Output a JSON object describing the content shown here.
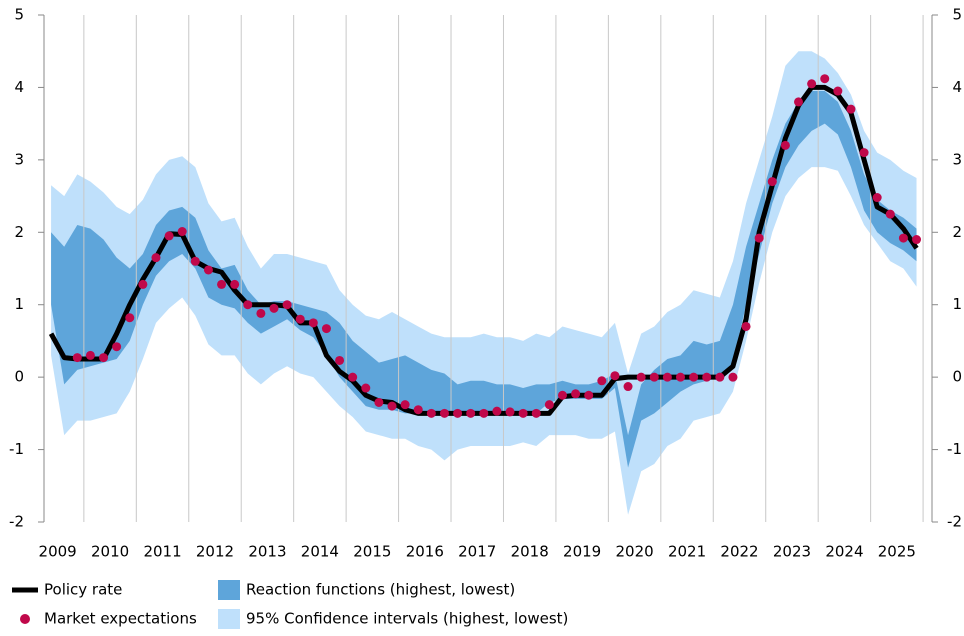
{
  "chart_data": {
    "type": "line",
    "x": [
      2009.375,
      2009.625,
      2009.875,
      2010.125,
      2010.375,
      2010.625,
      2010.875,
      2011.125,
      2011.375,
      2011.625,
      2011.875,
      2012.125,
      2012.375,
      2012.625,
      2012.875,
      2013.125,
      2013.375,
      2013.625,
      2013.875,
      2014.125,
      2014.375,
      2014.625,
      2014.875,
      2015.125,
      2015.375,
      2015.625,
      2015.875,
      2016.125,
      2016.375,
      2016.625,
      2016.875,
      2017.125,
      2017.375,
      2017.625,
      2017.875,
      2018.125,
      2018.375,
      2018.625,
      2018.875,
      2019.125,
      2019.375,
      2019.625,
      2019.875,
      2020.125,
      2020.375,
      2020.625,
      2020.875,
      2021.125,
      2021.375,
      2021.625,
      2021.875,
      2022.125,
      2022.375,
      2022.625,
      2022.875,
      2023.125,
      2023.375,
      2023.625,
      2023.875,
      2024.125,
      2024.375,
      2024.625,
      2024.875,
      2025.125,
      2025.375,
      2025.625,
      2025.875
    ],
    "xlim": [
      2009.24,
      2026.17
    ],
    "xticks": [
      {
        "value": 2009.5,
        "label": "2009"
      },
      {
        "value": 2010.5,
        "label": "2010"
      },
      {
        "value": 2011.5,
        "label": "2011"
      },
      {
        "value": 2012.5,
        "label": "2012"
      },
      {
        "value": 2013.5,
        "label": "2013"
      },
      {
        "value": 2014.5,
        "label": "2014"
      },
      {
        "value": 2015.5,
        "label": "2015"
      },
      {
        "value": 2016.5,
        "label": "2016"
      },
      {
        "value": 2017.5,
        "label": "2017"
      },
      {
        "value": 2018.5,
        "label": "2018"
      },
      {
        "value": 2019.5,
        "label": "2019"
      },
      {
        "value": 2020.5,
        "label": "2020"
      },
      {
        "value": 2021.5,
        "label": "2021"
      },
      {
        "value": 2022.5,
        "label": "2022"
      },
      {
        "value": 2023.5,
        "label": "2023"
      },
      {
        "value": 2024.5,
        "label": "2024"
      },
      {
        "value": 2025.5,
        "label": "2025"
      }
    ],
    "xgrid": [
      2010,
      2011,
      2012,
      2013,
      2014,
      2015,
      2016,
      2017,
      2018,
      2019,
      2020,
      2021,
      2022,
      2023,
      2024,
      2025,
      2026
    ],
    "ylim": [
      -2,
      5
    ],
    "yticks": [
      -2,
      -1,
      0,
      1,
      2,
      3,
      4,
      5
    ],
    "y2lim": [
      -2,
      5
    ],
    "y2ticks": [
      -2,
      -1,
      0,
      1,
      2,
      3,
      4,
      5
    ],
    "series": [
      {
        "name": "Policy rate",
        "kind": "line",
        "color": "#000000",
        "values": [
          0.6,
          0.27,
          0.25,
          0.25,
          0.25,
          0.6,
          1.0,
          1.35,
          1.65,
          1.98,
          1.97,
          1.6,
          1.5,
          1.45,
          1.2,
          1.0,
          1.0,
          1.0,
          0.98,
          0.75,
          0.75,
          0.3,
          0.08,
          -0.05,
          -0.25,
          -0.33,
          -0.35,
          -0.45,
          -0.5,
          -0.5,
          -0.5,
          -0.5,
          -0.5,
          -0.5,
          -0.5,
          -0.5,
          -0.5,
          -0.5,
          -0.5,
          -0.27,
          -0.25,
          -0.25,
          -0.25,
          -0.02,
          0,
          0,
          0,
          0,
          0,
          0,
          0,
          0,
          0.15,
          0.8,
          2.0,
          2.65,
          3.3,
          3.75,
          4.0,
          4.0,
          3.9,
          3.65,
          3.0,
          2.35,
          2.25,
          2.05,
          1.78
        ]
      },
      {
        "name": "Market expectations",
        "kind": "dots",
        "color": "#c0084a",
        "values": [
          null,
          null,
          0.27,
          0.3,
          0.27,
          0.42,
          0.82,
          1.28,
          1.65,
          1.95,
          2.01,
          1.6,
          1.48,
          1.28,
          1.28,
          1.0,
          0.88,
          0.95,
          1.0,
          0.8,
          0.75,
          0.67,
          0.23,
          0.0,
          -0.15,
          -0.35,
          -0.4,
          -0.38,
          -0.45,
          -0.5,
          -0.5,
          -0.5,
          -0.5,
          -0.5,
          -0.47,
          -0.48,
          -0.5,
          -0.5,
          -0.38,
          -0.25,
          -0.23,
          -0.25,
          -0.05,
          0.02,
          -0.13,
          0,
          0,
          0,
          0,
          0,
          0,
          0,
          0,
          0.7,
          1.92,
          2.7,
          3.2,
          3.8,
          4.05,
          4.12,
          3.95,
          3.7,
          3.1,
          2.48,
          2.25,
          1.92,
          1.9
        ]
      },
      {
        "name": "Reaction functions (highest, lowest)",
        "kind": "band",
        "color": "#5ea5da",
        "high": [
          2.0,
          1.8,
          2.1,
          2.05,
          1.9,
          1.65,
          1.5,
          1.7,
          2.1,
          2.3,
          2.35,
          2.2,
          1.75,
          1.5,
          1.55,
          1.2,
          1.0,
          1.05,
          1.05,
          1.0,
          0.95,
          0.9,
          0.75,
          0.5,
          0.35,
          0.2,
          0.25,
          0.3,
          0.2,
          0.1,
          0.05,
          -0.1,
          -0.05,
          -0.05,
          -0.1,
          -0.1,
          -0.15,
          -0.1,
          -0.1,
          -0.05,
          -0.1,
          -0.1,
          -0.05,
          0.05,
          -0.8,
          -0.1,
          0.1,
          0.25,
          0.3,
          0.5,
          0.45,
          0.5,
          1.0,
          1.8,
          2.4,
          3.0,
          3.5,
          3.8,
          3.95,
          3.95,
          3.8,
          3.4,
          2.8,
          2.45,
          2.3,
          2.2,
          2.05
        ],
        "low": [
          1.0,
          -0.1,
          0.1,
          0.15,
          0.2,
          0.25,
          0.5,
          1.0,
          1.4,
          1.6,
          1.7,
          1.5,
          1.1,
          1.0,
          0.95,
          0.75,
          0.6,
          0.7,
          0.8,
          0.65,
          0.55,
          0.3,
          0.0,
          -0.2,
          -0.4,
          -0.45,
          -0.45,
          -0.5,
          -0.5,
          -0.5,
          -0.5,
          -0.5,
          -0.5,
          -0.5,
          -0.5,
          -0.5,
          -0.5,
          -0.5,
          -0.35,
          -0.3,
          -0.3,
          -0.3,
          -0.3,
          -0.15,
          -1.25,
          -0.6,
          -0.5,
          -0.35,
          -0.2,
          -0.1,
          -0.05,
          0.0,
          0.2,
          1.0,
          1.7,
          2.4,
          2.9,
          3.2,
          3.4,
          3.5,
          3.35,
          2.9,
          2.3,
          2.0,
          1.85,
          1.75,
          1.6
        ]
      },
      {
        "name": "95% Confidence intervals (highest, lowest)",
        "kind": "band",
        "color": "#bfe0fb",
        "high": [
          2.65,
          2.5,
          2.8,
          2.7,
          2.55,
          2.35,
          2.25,
          2.45,
          2.8,
          3.0,
          3.05,
          2.9,
          2.4,
          2.15,
          2.2,
          1.8,
          1.5,
          1.7,
          1.7,
          1.65,
          1.6,
          1.55,
          1.2,
          1.0,
          0.85,
          0.8,
          0.9,
          0.8,
          0.7,
          0.6,
          0.55,
          0.55,
          0.55,
          0.6,
          0.55,
          0.55,
          0.5,
          0.6,
          0.55,
          0.7,
          0.65,
          0.6,
          0.55,
          0.75,
          0.05,
          0.6,
          0.7,
          0.9,
          1.0,
          1.2,
          1.15,
          1.1,
          1.6,
          2.4,
          3.0,
          3.6,
          4.3,
          4.5,
          4.5,
          4.4,
          4.2,
          3.9,
          3.4,
          3.1,
          3.0,
          2.85,
          2.75
        ],
        "low": [
          0.3,
          -0.8,
          -0.6,
          -0.6,
          -0.55,
          -0.5,
          -0.2,
          0.25,
          0.75,
          0.95,
          1.1,
          0.85,
          0.45,
          0.3,
          0.3,
          0.05,
          -0.1,
          0.05,
          0.15,
          0.05,
          0.0,
          -0.2,
          -0.4,
          -0.55,
          -0.75,
          -0.8,
          -0.85,
          -0.85,
          -0.95,
          -1.0,
          -1.15,
          -1.0,
          -0.95,
          -0.95,
          -0.95,
          -0.95,
          -0.9,
          -0.95,
          -0.8,
          -0.8,
          -0.8,
          -0.85,
          -0.85,
          -0.75,
          -1.9,
          -1.3,
          -1.2,
          -0.95,
          -0.85,
          -0.6,
          -0.55,
          -0.5,
          -0.2,
          0.5,
          1.3,
          2.0,
          2.5,
          2.75,
          2.9,
          2.9,
          2.85,
          2.5,
          2.1,
          1.85,
          1.6,
          1.5,
          1.25
        ]
      }
    ],
    "grid": true
  }
}
